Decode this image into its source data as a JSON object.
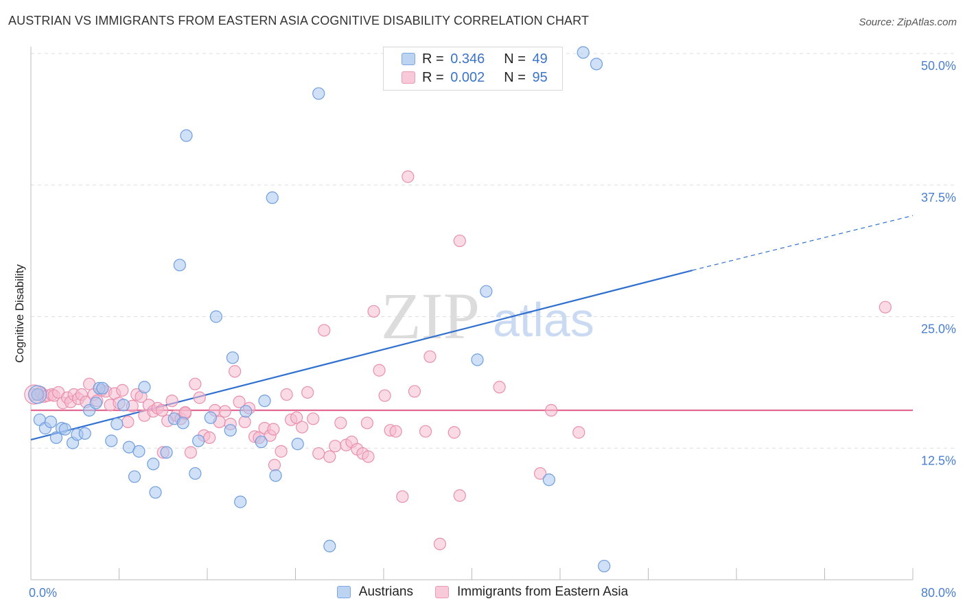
{
  "header": {
    "title": "AUSTRIAN VS IMMIGRANTS FROM EASTERN ASIA COGNITIVE DISABILITY CORRELATION CHART",
    "source": "Source: ZipAtlas.com"
  },
  "watermark": {
    "zip": "ZIP",
    "atlas": "atlas"
  },
  "legend_top": {
    "rows": [
      {
        "r_label": "R =",
        "r_value": "0.346",
        "n_label": "N =",
        "n_value": "49"
      },
      {
        "r_label": "R =",
        "r_value": "0.002",
        "n_label": "N =",
        "n_value": "95"
      }
    ]
  },
  "legend_bottom": {
    "items": [
      "Austrians",
      "Immigrants from Eastern Asia"
    ]
  },
  "colors": {
    "blue_fill": "#a9c6ee",
    "blue_stroke": "#6f9ee0",
    "blue_line": "#2e6fcf",
    "pink_fill": "#f6bccf",
    "pink_stroke": "#e98fae",
    "pink_line": "#e06892",
    "tick_text": "#4a7fd0",
    "grid": "#dddddd"
  },
  "chart_data": {
    "type": "scatter",
    "title": "AUSTRIAN VS IMMIGRANTS FROM EASTERN ASIA COGNITIVE DISABILITY CORRELATION CHART",
    "xlabel": "",
    "ylabel": "Cognitive Disability",
    "xlim": [
      0,
      80
    ],
    "ylim": [
      0,
      50
    ],
    "x_tick_labels": [
      "0.0%",
      "80.0%"
    ],
    "y_ticks": [
      12.5,
      25.0,
      37.5,
      50.0
    ],
    "y_tick_labels": [
      "12.5%",
      "25.0%",
      "37.5%",
      "50.0%"
    ],
    "grid": true,
    "legend_position": "top-center",
    "series": [
      {
        "name": "Austrians",
        "r": 0.346,
        "n": 49,
        "trend": {
          "x0": 0,
          "y0": 13.3,
          "x1": 60,
          "y1": 29.4,
          "dash_to_x": 80,
          "dash_to_y": 34.6
        },
        "points": [
          [
            0.6,
            17.6
          ],
          [
            0.8,
            15.2
          ],
          [
            1.3,
            14.4
          ],
          [
            1.8,
            15.0
          ],
          [
            2.3,
            13.5
          ],
          [
            2.8,
            14.4
          ],
          [
            3.1,
            14.3
          ],
          [
            3.8,
            13.0
          ],
          [
            4.2,
            13.8
          ],
          [
            4.9,
            13.9
          ],
          [
            5.3,
            16.1
          ],
          [
            5.9,
            16.8
          ],
          [
            6.2,
            18.2
          ],
          [
            6.5,
            18.2
          ],
          [
            7.3,
            13.2
          ],
          [
            7.8,
            14.8
          ],
          [
            8.4,
            16.6
          ],
          [
            8.9,
            12.6
          ],
          [
            9.4,
            9.8
          ],
          [
            9.8,
            12.2
          ],
          [
            10.3,
            18.3
          ],
          [
            11.1,
            11.0
          ],
          [
            11.3,
            8.3
          ],
          [
            12.3,
            12.1
          ],
          [
            13.0,
            15.3
          ],
          [
            13.5,
            29.9
          ],
          [
            13.8,
            14.9
          ],
          [
            14.1,
            42.2
          ],
          [
            14.9,
            10.1
          ],
          [
            15.2,
            13.2
          ],
          [
            16.3,
            15.4
          ],
          [
            16.8,
            25.0
          ],
          [
            18.1,
            14.2
          ],
          [
            18.3,
            21.1
          ],
          [
            19.0,
            7.4
          ],
          [
            19.5,
            16.0
          ],
          [
            20.9,
            13.1
          ],
          [
            21.9,
            36.3
          ],
          [
            21.2,
            17.0
          ],
          [
            22.2,
            9.9
          ],
          [
            24.2,
            12.9
          ],
          [
            26.1,
            46.2
          ],
          [
            27.1,
            3.2
          ],
          [
            41.3,
            27.4
          ],
          [
            40.5,
            20.9
          ],
          [
            47.0,
            9.5
          ],
          [
            50.1,
            50.1
          ],
          [
            51.3,
            49.0
          ],
          [
            52.0,
            1.3
          ]
        ]
      },
      {
        "name": "Immigrants from Eastern Asia",
        "r": 0.002,
        "n": 95,
        "trend": {
          "x0": 0,
          "y0": 16.1,
          "x1": 80,
          "y1": 16.1
        },
        "points": [
          [
            0.3,
            17.6
          ],
          [
            0.9,
            17.8
          ],
          [
            1.2,
            17.4
          ],
          [
            1.5,
            17.5
          ],
          [
            1.9,
            17.6
          ],
          [
            2.1,
            17.5
          ],
          [
            2.5,
            17.8
          ],
          [
            2.9,
            16.8
          ],
          [
            3.3,
            17.3
          ],
          [
            3.6,
            16.9
          ],
          [
            3.9,
            17.6
          ],
          [
            4.3,
            17.2
          ],
          [
            4.6,
            17.6
          ],
          [
            5.0,
            16.9
          ],
          [
            5.3,
            18.6
          ],
          [
            5.7,
            17.6
          ],
          [
            6.0,
            17.0
          ],
          [
            6.4,
            18.0
          ],
          [
            6.8,
            17.9
          ],
          [
            7.2,
            16.6
          ],
          [
            7.6,
            17.7
          ],
          [
            8.0,
            16.8
          ],
          [
            8.3,
            18.0
          ],
          [
            8.8,
            15.0
          ],
          [
            9.2,
            16.5
          ],
          [
            9.6,
            17.6
          ],
          [
            10.0,
            17.4
          ],
          [
            10.3,
            15.6
          ],
          [
            10.7,
            16.6
          ],
          [
            11.1,
            16.0
          ],
          [
            11.5,
            16.3
          ],
          [
            11.9,
            16.1
          ],
          [
            12.4,
            15.1
          ],
          [
            12.8,
            17.0
          ],
          [
            13.2,
            15.6
          ],
          [
            13.6,
            15.3
          ],
          [
            14.0,
            15.8
          ],
          [
            14.5,
            12.1
          ],
          [
            14.9,
            18.6
          ],
          [
            15.3,
            17.3
          ],
          [
            15.7,
            13.7
          ],
          [
            16.2,
            13.5
          ],
          [
            16.7,
            16.1
          ],
          [
            17.1,
            15.0
          ],
          [
            17.6,
            16.0
          ],
          [
            18.1,
            14.8
          ],
          [
            18.5,
            19.8
          ],
          [
            18.9,
            16.9
          ],
          [
            19.4,
            15.0
          ],
          [
            19.8,
            16.3
          ],
          [
            20.3,
            13.6
          ],
          [
            20.7,
            13.5
          ],
          [
            21.2,
            14.4
          ],
          [
            21.7,
            13.7
          ],
          [
            22.1,
            10.9
          ],
          [
            22.7,
            12.2
          ],
          [
            23.2,
            17.6
          ],
          [
            23.6,
            15.2
          ],
          [
            24.1,
            15.4
          ],
          [
            24.6,
            14.5
          ],
          [
            25.1,
            17.8
          ],
          [
            25.6,
            15.3
          ],
          [
            26.1,
            12.0
          ],
          [
            26.6,
            23.7
          ],
          [
            27.1,
            11.7
          ],
          [
            27.6,
            12.7
          ],
          [
            28.1,
            14.9
          ],
          [
            28.6,
            12.8
          ],
          [
            29.1,
            13.1
          ],
          [
            29.6,
            12.4
          ],
          [
            30.1,
            12.0
          ],
          [
            30.6,
            11.7
          ],
          [
            31.1,
            25.5
          ],
          [
            31.6,
            19.9
          ],
          [
            32.1,
            17.5
          ],
          [
            32.6,
            14.2
          ],
          [
            33.1,
            14.1
          ],
          [
            33.7,
            7.9
          ],
          [
            34.2,
            38.3
          ],
          [
            34.8,
            17.9
          ],
          [
            35.8,
            14.1
          ],
          [
            36.2,
            21.2
          ],
          [
            37.1,
            3.4
          ],
          [
            38.9,
            32.2
          ],
          [
            38.4,
            14.0
          ],
          [
            38.9,
            8.0
          ],
          [
            42.5,
            18.3
          ],
          [
            46.2,
            10.1
          ],
          [
            47.2,
            16.1
          ],
          [
            49.7,
            14.0
          ],
          [
            77.5,
            25.9
          ],
          [
            14.0,
            15.9
          ],
          [
            22.0,
            14.3
          ],
          [
            30.5,
            14.9
          ],
          [
            12.0,
            12.1
          ]
        ]
      }
    ]
  }
}
